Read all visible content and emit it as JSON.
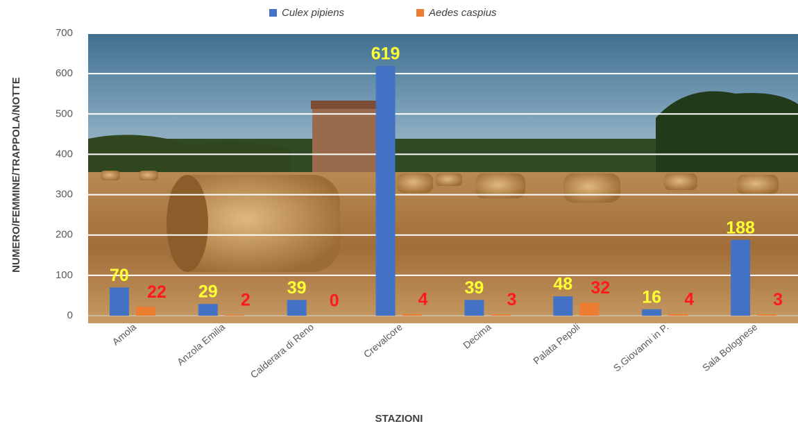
{
  "chart_data": {
    "type": "bar",
    "x_label": "STAZIONI",
    "y_label": "NUMERO/FEMMINE/TRAPPOLA/NOTTE",
    "categories": [
      "Amola",
      "Anzola Emilia",
      "Calderara di Reno",
      "Crevalcore",
      "Decima",
      "Palata Pepoli",
      "S.Giovanni in P.",
      "Sala Bolognese"
    ],
    "series": [
      {
        "name": "Culex pipiens",
        "color": "#4472c4",
        "label_color": "#ffff33",
        "values": [
          70,
          29,
          39,
          619,
          39,
          48,
          16,
          188
        ]
      },
      {
        "name": "Aedes caspius",
        "color": "#ed7d31",
        "label_color": "#ff1a1a",
        "values": [
          22,
          2,
          0,
          4,
          3,
          32,
          4,
          3
        ]
      }
    ],
    "ylim": [
      0,
      700
    ],
    "yticks": [
      0,
      100,
      200,
      300,
      400,
      500,
      600,
      700
    ],
    "grid": true,
    "legend": "top"
  }
}
